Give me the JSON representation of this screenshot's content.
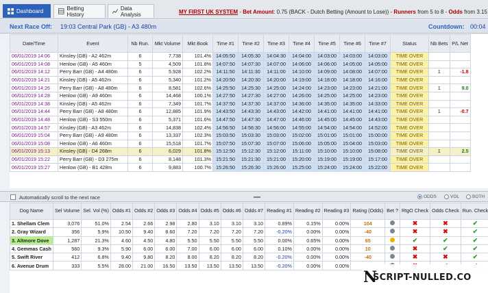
{
  "tabs": [
    {
      "label": "Dashboard",
      "icon": "dashboard-icon",
      "active": true
    },
    {
      "label": "Betting History",
      "icon": "table-icon",
      "active": false
    },
    {
      "label": "Data Analysis",
      "icon": "chart-icon",
      "active": false
    }
  ],
  "system": {
    "title": "MY FIRST UK SYSTEM",
    "sep1": " - ",
    "bet_label": "Bet Amount",
    "bet_value": ": 0.75 (BACK - Dutch Betting (Amount to Lose))",
    "sep2": " - ",
    "runners_label": "Runners",
    "runners_value": " from 5 to 8",
    "sep3": " - ",
    "odds_label": "Odds",
    "odds_value": " from 3.15 to"
  },
  "next_race": {
    "label": "Next Race Off:",
    "value": "19:03 Central Park (GB) - A3 480m",
    "countdown_label": "Countdown:",
    "countdown_value": "00:04"
  },
  "race_table": {
    "headers": [
      "Date/Time",
      "Event",
      "Nb Run.",
      "Mkt Volume",
      "Mkt Book",
      "Time #1",
      "Time #2",
      "Time #3",
      "Time #4",
      "Time #5",
      "Time #6",
      "Time #7",
      "Status",
      "Nb Bets",
      "P/L Net"
    ],
    "rows": [
      {
        "dt": "06/01/2019 14:06",
        "ev": "Kinsley (GB) - A2 462m",
        "nb": "6",
        "vol": "7,738",
        "book": "101.4%",
        "t": [
          "14:05:50",
          "14:05:30",
          "14:04:30",
          "14:04:00",
          "14:03:00",
          "14:03:00",
          "14:03:00"
        ],
        "status": "TIME OVER",
        "bets": "",
        "pl": ""
      },
      {
        "dt": "06/01/2019 14:08",
        "ev": "Henlow (GB) - A5 460m",
        "nb": "5",
        "vol": "4,509",
        "book": "101.8%",
        "t": [
          "14:07:50",
          "14:07:30",
          "14:07:00",
          "14:06:00",
          "14:06:00",
          "14:05:00",
          "14:05:00"
        ],
        "status": "TIME OVER",
        "bets": "",
        "pl": ""
      },
      {
        "dt": "06/01/2019 14:12",
        "ev": "Perry Barr (GB) - A4 480m",
        "nb": "6",
        "vol": "5,928",
        "book": "102.2%",
        "t": [
          "14:11:50",
          "14:11:30",
          "14:11:00",
          "14:10:00",
          "14:09:00",
          "14:08:00",
          "14:07:00"
        ],
        "status": "TIME OVER",
        "bets": "1",
        "pl": "-1.8"
      },
      {
        "dt": "06/01/2019 14:21",
        "ev": "Kinsley (GB) - A5 462m",
        "nb": "6",
        "vol": "5,340",
        "book": "101.2%",
        "t": [
          "14:20:50",
          "14:20:30",
          "14:20:00",
          "14:19:00",
          "14:18:00",
          "14:18:00",
          "14:16:00"
        ],
        "status": "TIME OVER",
        "bets": "",
        "pl": ""
      },
      {
        "dt": "06/01/2019 14:26",
        "ev": "Perry Barr (GB) - A8 480m",
        "nb": "6",
        "vol": "8,581",
        "book": "102.6%",
        "t": [
          "14:25:50",
          "14:25:30",
          "14:25:00",
          "14:24:00",
          "14:23:00",
          "14:23:00",
          "14:21:00"
        ],
        "status": "TIME OVER",
        "bets": "1",
        "pl": "9.0"
      },
      {
        "dt": "06/01/2019 14:28",
        "ev": "Henlow (GB) - A9 460m",
        "nb": "6",
        "vol": "14,468",
        "book": "100.1%",
        "t": [
          "14:27:50",
          "14:27:30",
          "14:27:00",
          "14:26:00",
          "14:25:00",
          "14:25:00",
          "14:23:00"
        ],
        "status": "TIME OVER",
        "bets": "",
        "pl": ""
      },
      {
        "dt": "06/01/2019 14:38",
        "ev": "Kinsley (GB) - A5 462m",
        "nb": "6",
        "vol": "7,349",
        "book": "101.7%",
        "t": [
          "14:37:50",
          "14:37:30",
          "14:37:00",
          "14:36:00",
          "14:35:00",
          "14:35:00",
          "14:33:00"
        ],
        "status": "TIME OVER",
        "bets": "",
        "pl": ""
      },
      {
        "dt": "06/01/2019 14:44",
        "ev": "Perry Barr (GB) - A8 480m",
        "nb": "6",
        "vol": "12,885",
        "book": "101.9%",
        "t": [
          "14:43:50",
          "14:43:30",
          "14:43:00",
          "14:42:00",
          "14:41:00",
          "14:41:00",
          "14:41:00"
        ],
        "status": "TIME OVER",
        "bets": "1",
        "pl": "-0.7"
      },
      {
        "dt": "06/01/2019 14:48",
        "ev": "Henlow (GB) - S3 550m",
        "nb": "6",
        "vol": "5,371",
        "book": "101.6%",
        "t": [
          "14:47:50",
          "14:47:30",
          "14:47:00",
          "14:46:00",
          "14:45:00",
          "14:45:00",
          "14:43:00"
        ],
        "status": "TIME OVER",
        "bets": "",
        "pl": ""
      },
      {
        "dt": "06/01/2019 14:57",
        "ev": "Kinsley (GB) - A3 462m",
        "nb": "6",
        "vol": "14,838",
        "book": "102.4%",
        "t": [
          "14:56:50",
          "14:56:30",
          "14:56:00",
          "14:55:00",
          "14:54:00",
          "14:54:00",
          "14:52:00"
        ],
        "status": "TIME OVER",
        "bets": "",
        "pl": ""
      },
      {
        "dt": "06/01/2019 15:04",
        "ev": "Perry Barr (GB) - A9 480m",
        "nb": "6",
        "vol": "13,337",
        "book": "102.3%",
        "t": [
          "15:03:50",
          "15:03:30",
          "15:03:00",
          "15:02:00",
          "15:01:00",
          "15:01:00",
          "15:00:00"
        ],
        "status": "TIME OVER",
        "bets": "",
        "pl": ""
      },
      {
        "dt": "06/01/2019 15:08",
        "ev": "Henlow (GB) - A6 460m",
        "nb": "6",
        "vol": "15,518",
        "book": "101.7%",
        "t": [
          "15:07:50",
          "15:07:30",
          "15:07:00",
          "15:06:00",
          "15:05:00",
          "15:04:00",
          "15:03:00"
        ],
        "status": "TIME OVER",
        "bets": "",
        "pl": ""
      },
      {
        "dt": "06/01/2019 15:13",
        "ev": "Kinsley (GB) - D4 268m",
        "nb": "6",
        "vol": "6,029",
        "book": "101.8%",
        "t": [
          "15:12:50",
          "15:12:30",
          "15:12:00",
          "15:11:00",
          "15:10:00",
          "15:10:00",
          "15:08:00"
        ],
        "status": "TIME OVER",
        "bets": "1",
        "pl": "2.5",
        "hl": true
      },
      {
        "dt": "06/01/2019 15:22",
        "ev": "Perry Barr (GB) - D3 275m",
        "nb": "6",
        "vol": "8,148",
        "book": "101.3%",
        "t": [
          "15:21:50",
          "15:21:30",
          "15:21:00",
          "15:20:00",
          "15:19:00",
          "15:19:00",
          "15:17:00"
        ],
        "status": "TIME OVER",
        "bets": "",
        "pl": ""
      },
      {
        "dt": "06/01/2019 15:27",
        "ev": "Henlow (GB) - B1 428m",
        "nb": "6",
        "vol": "9,883",
        "book": "100.7%",
        "t": [
          "15:26:50",
          "15:26:30",
          "15:26:00",
          "15:25:00",
          "15:24:00",
          "15:24:00",
          "15:22:00"
        ],
        "status": "TIME OVER",
        "bets": "",
        "pl": ""
      }
    ]
  },
  "autoscroll": {
    "label": "Automatically scroll to the next race",
    "radios": [
      "ODDS",
      "VOL",
      "BOTH"
    ],
    "selected": "ODDS"
  },
  "dog_table": {
    "headers": [
      "Dog Name",
      "Sel Volume",
      "Sel. Vol (%)",
      "Odds #1",
      "Odds #2",
      "Odds #3",
      "Odds #4",
      "Odds #5",
      "Odds #6",
      "Odds #7",
      "Reading #1",
      "Reading #2",
      "Reading #3",
      "Rating (Odds)",
      "Bet ?",
      "RtgO Check",
      "Odds Check",
      "Run. Check",
      "Fav Check"
    ],
    "rows": [
      {
        "name": "1. Shellam Clem",
        "vol": "3,076",
        "pct": "51.0%",
        "o": [
          "2.54",
          "2.66",
          "2.98",
          "2.80",
          "3.10",
          "3.10",
          "3.10"
        ],
        "r": [
          "0.89%",
          "0.15%",
          "0.00%"
        ],
        "rating": "104",
        "bet": "grey",
        "checks": [
          "x",
          "x",
          "tick",
          "tick"
        ]
      },
      {
        "name": "2. Gray Wizard",
        "vol": "356",
        "pct": "5.9%",
        "o": [
          "10.50",
          "9.40",
          "8.60",
          "7.20",
          "7.20",
          "7.20",
          "7.20"
        ],
        "r": [
          "-0.20%",
          "0.00%",
          "0.00%"
        ],
        "rating": "-40",
        "bet": "grey",
        "checks": [
          "x",
          "x",
          "tick",
          "tick"
        ]
      },
      {
        "name": "3. Altmore Dove",
        "vol": "1,287",
        "pct": "21.3%",
        "o": [
          "4.60",
          "4.50",
          "4.80",
          "5.50",
          "5.50",
          "5.50",
          "5.50"
        ],
        "r": [
          "0.00%",
          "0.65%",
          "0.00%"
        ],
        "rating": "65",
        "bet": "yellow",
        "checks": [
          "tick",
          "tick",
          "tick",
          "tick"
        ],
        "sel": true
      },
      {
        "name": "4. Gemmas Cash",
        "vol": "560",
        "pct": "9.3%",
        "o": [
          "5.90",
          "6.00",
          "6.00",
          "7.00",
          "6.00",
          "6.00",
          "6.00"
        ],
        "r": [
          "0.10%",
          "0.00%",
          "0.00%"
        ],
        "rating": "10",
        "bet": "grey",
        "checks": [
          "x",
          "tick",
          "tick",
          "tick"
        ]
      },
      {
        "name": "5. Swift River",
        "vol": "412",
        "pct": "6.8%",
        "o": [
          "9.40",
          "9.80",
          "8.20",
          "8.00",
          "8.20",
          "8.20",
          "8.20"
        ],
        "r": [
          "-0.20%",
          "0.00%",
          "0.00%"
        ],
        "rating": "-40",
        "bet": "grey",
        "checks": [
          "x",
          "x",
          "tick",
          "tick"
        ]
      },
      {
        "name": "6. Avenue Drum",
        "vol": "333",
        "pct": "5.5%",
        "o": [
          "28.00",
          "21.00",
          "16.50",
          "13.50",
          "13.50",
          "13.50",
          "13.50"
        ],
        "r": [
          "-0.20%",
          "0.00%",
          "0.00%"
        ],
        "rating": "",
        "bet": "grey",
        "checks": [
          "x",
          "tick",
          "tick",
          "tick"
        ]
      }
    ]
  },
  "watermark": {
    "letter": "N",
    "text": "SCRIPT-NULLED.CO"
  }
}
